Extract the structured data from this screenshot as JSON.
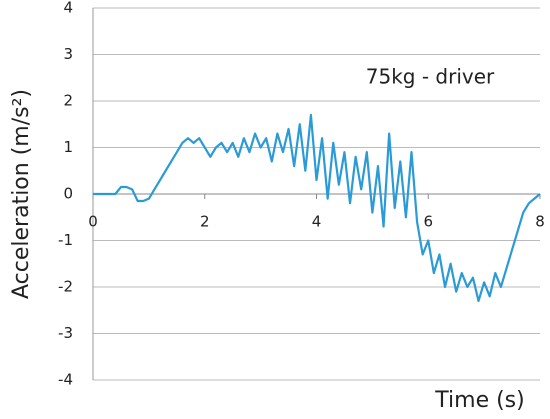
{
  "chart_data": {
    "type": "line",
    "annotation": "75kg - driver",
    "x_label": "Time (s)",
    "y_label": "Acceleration  (m/s²)",
    "xlim": [
      0,
      8
    ],
    "xticks": [
      0,
      2,
      4,
      6,
      8
    ],
    "ylim": [
      -4,
      4
    ],
    "yticks": [
      -4,
      -3,
      -2,
      -1,
      0,
      1,
      2,
      3,
      4
    ],
    "grid": true,
    "series": [
      {
        "name": null,
        "color": "#2b9bd7",
        "x": [
          0,
          0.1,
          0.2,
          0.3,
          0.4,
          0.5,
          0.6,
          0.7,
          0.8,
          0.9,
          1.0,
          1.1,
          1.2,
          1.3,
          1.4,
          1.5,
          1.6,
          1.7,
          1.8,
          1.9,
          2.0,
          2.1,
          2.2,
          2.3,
          2.4,
          2.5,
          2.6,
          2.7,
          2.8,
          2.9,
          3.0,
          3.1,
          3.2,
          3.3,
          3.4,
          3.5,
          3.6,
          3.7,
          3.8,
          3.9,
          4.0,
          4.1,
          4.2,
          4.3,
          4.4,
          4.5,
          4.6,
          4.7,
          4.8,
          4.9,
          5.0,
          5.1,
          5.2,
          5.3,
          5.4,
          5.5,
          5.6,
          5.7,
          5.8,
          5.9,
          6.0,
          6.1,
          6.2,
          6.3,
          6.4,
          6.5,
          6.6,
          6.7,
          6.8,
          6.9,
          7.0,
          7.1,
          7.2,
          7.3,
          7.4,
          7.5,
          7.6,
          7.7,
          7.8,
          7.9,
          8.0
        ],
        "values": [
          0,
          0,
          0,
          0,
          0,
          0.15,
          0.15,
          0.1,
          -0.15,
          -0.15,
          -0.1,
          0.1,
          0.3,
          0.5,
          0.7,
          0.9,
          1.1,
          1.2,
          1.1,
          1.2,
          1.0,
          0.8,
          1.0,
          1.1,
          0.9,
          1.1,
          0.8,
          1.2,
          0.9,
          1.3,
          1.0,
          1.2,
          0.7,
          1.3,
          0.9,
          1.4,
          0.6,
          1.5,
          0.5,
          1.7,
          0.3,
          1.2,
          -0.1,
          1.1,
          0.2,
          0.9,
          -0.2,
          0.8,
          0.1,
          0.9,
          -0.4,
          0.6,
          -0.7,
          1.3,
          -0.3,
          0.7,
          -0.5,
          0.9,
          -0.6,
          -1.3,
          -1.0,
          -1.7,
          -1.3,
          -2.0,
          -1.5,
          -2.1,
          -1.7,
          -2.0,
          -1.8,
          -2.3,
          -1.9,
          -2.2,
          -1.7,
          -2.0,
          -1.6,
          -1.2,
          -0.8,
          -0.4,
          -0.2,
          -0.1,
          0.0
        ]
      }
    ]
  }
}
